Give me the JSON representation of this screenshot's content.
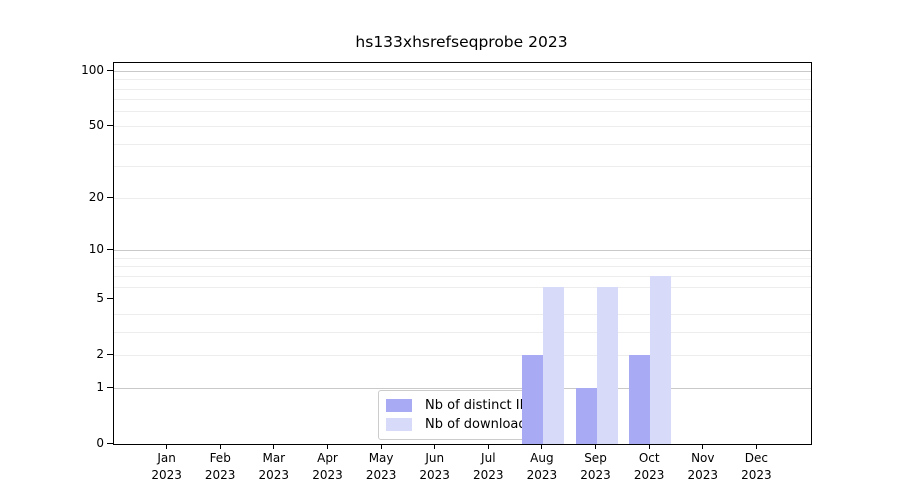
{
  "title": "hs133xhsrefseqprobe 2023",
  "chart_data": {
    "type": "bar",
    "title": "hs133xhsrefseqprobe 2023",
    "categories": [
      "Jan",
      "Feb",
      "Mar",
      "Apr",
      "May",
      "Jun",
      "Jul",
      "Aug",
      "Sep",
      "Oct",
      "Nov",
      "Dec"
    ],
    "x_sub_label": "2023",
    "series": [
      {
        "name": "Nb of distinct IPs",
        "color": "#a8aaf4",
        "values": [
          0,
          0,
          0,
          0,
          0,
          0,
          0,
          2,
          1,
          2,
          0,
          0
        ]
      },
      {
        "name": "Nb of downloads",
        "color": "#d8daf9",
        "values": [
          0,
          0,
          0,
          0,
          0,
          0,
          0,
          6,
          6,
          7,
          0,
          0
        ]
      }
    ],
    "yscale": "log1p",
    "ylim": [
      0,
      110
    ],
    "ytick_values": [
      0,
      1,
      2,
      5,
      10,
      20,
      50,
      100
    ],
    "ytick_labels": [
      "0",
      "1",
      "2",
      "5",
      "10",
      "20",
      "50",
      "100"
    ],
    "major_grid_values": [
      1,
      10,
      100
    ],
    "minor_grid_values": [
      2,
      3,
      4,
      6,
      7,
      8,
      9,
      20,
      30,
      40,
      50,
      60,
      70,
      80,
      90
    ],
    "grid": "horizontal",
    "legend_position": "lower-center",
    "xlabel": "",
    "ylabel": ""
  },
  "colors": {
    "axis": "#000000",
    "grid_major": "#c9c9c9",
    "grid_minor": "#ededed",
    "legend_border": "#cccccc",
    "background": "#ffffff"
  }
}
